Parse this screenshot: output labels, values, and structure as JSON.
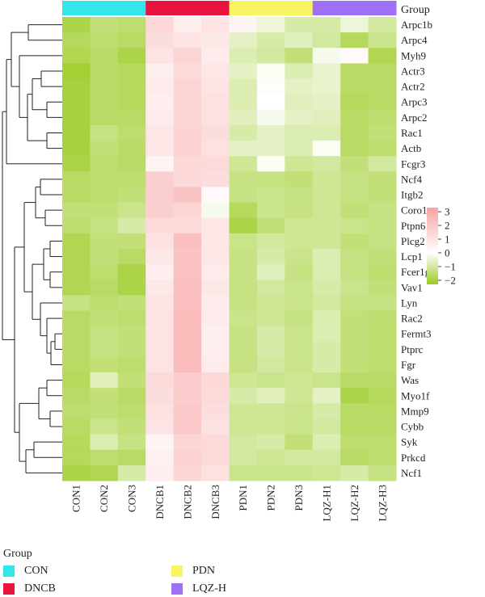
{
  "chart_data": {
    "type": "heatmap",
    "title": "",
    "group_header": "Group",
    "columns": [
      "CON1",
      "CON2",
      "CON3",
      "DNCB1",
      "DNCB2",
      "DNCB3",
      "PDN1",
      "PDN2",
      "PDN3",
      "LQZ-H1",
      "LQZ-H2",
      "LQZ-H3"
    ],
    "column_groups": [
      "CON",
      "CON",
      "CON",
      "DNCB",
      "DNCB",
      "DNCB",
      "PDN",
      "PDN",
      "PDN",
      "LQZ-H",
      "LQZ-H",
      "LQZ-H"
    ],
    "rows": [
      "Arpc1b",
      "Arpc4",
      "Myh9",
      "Actr3",
      "Actr2",
      "Arpc3",
      "Arpc2",
      "Rac1",
      "Actb",
      "Fcgr3",
      "Ncf4",
      "Itgb2",
      "Coro1a",
      "Ptpn6",
      "Plcg2",
      "Lcp1",
      "Fcer1g",
      "Vav1",
      "Lyn",
      "Rac2",
      "Fermt3",
      "Ptprc",
      "Fgr",
      "Was",
      "Myo1f",
      "Mmp9",
      "Cybb",
      "Syk",
      "Prkcd",
      "Ncf1"
    ],
    "values": [
      [
        -1.9,
        -1.4,
        -1.5,
        1.4,
        0.6,
        1.0,
        0.4,
        -0.4,
        -0.9,
        -0.9,
        -0.4,
        -1.0
      ],
      [
        -1.7,
        -1.5,
        -1.6,
        1.2,
        1.0,
        0.8,
        -0.6,
        -0.9,
        -0.7,
        -1.0,
        -1.7,
        -1.2
      ],
      [
        -1.8,
        -1.6,
        -1.9,
        1.0,
        1.5,
        0.7,
        -0.8,
        -1.0,
        -1.4,
        -0.2,
        0.2,
        -1.8
      ],
      [
        -2.1,
        -1.6,
        -1.7,
        0.6,
        1.3,
        0.9,
        -0.6,
        -0.1,
        -0.8,
        -0.5,
        -1.6,
        -1.6
      ],
      [
        -2.0,
        -1.6,
        -1.7,
        0.7,
        1.5,
        1.0,
        -0.8,
        0.1,
        -0.6,
        -0.5,
        -1.6,
        -1.6
      ],
      [
        -2.0,
        -1.6,
        -1.7,
        0.6,
        1.5,
        1.1,
        -0.8,
        0.0,
        -0.7,
        -0.6,
        -1.7,
        -1.6
      ],
      [
        -2.0,
        -1.6,
        -1.6,
        0.7,
        1.5,
        1.1,
        -0.7,
        -0.2,
        -0.6,
        -0.7,
        -1.6,
        -1.5
      ],
      [
        -2.0,
        -1.3,
        -1.5,
        0.9,
        1.6,
        1.2,
        -0.9,
        -0.6,
        -0.8,
        -0.8,
        -1.6,
        -1.4
      ],
      [
        -2.0,
        -1.4,
        -1.6,
        0.9,
        1.6,
        1.1,
        -0.6,
        -0.6,
        -0.8,
        -0.1,
        -1.6,
        -1.5
      ],
      [
        -1.9,
        -1.5,
        -1.6,
        0.4,
        1.4,
        1.3,
        -1.1,
        -0.1,
        -1.1,
        -1.0,
        -1.4,
        -1.0
      ],
      [
        -1.6,
        -1.5,
        -1.5,
        1.7,
        1.4,
        1.2,
        -1.3,
        -1.3,
        -1.4,
        -1.1,
        -1.3,
        -1.4
      ],
      [
        -1.6,
        -1.5,
        -1.4,
        1.7,
        2.1,
        0.2,
        -1.3,
        -1.2,
        -1.3,
        -1.1,
        -1.3,
        -1.4
      ],
      [
        -1.4,
        -1.4,
        -1.2,
        1.7,
        1.5,
        -0.2,
        -1.7,
        -1.2,
        -1.3,
        -1.1,
        -1.4,
        -1.3
      ],
      [
        -1.5,
        -1.3,
        -0.9,
        1.3,
        1.3,
        0.9,
        -1.9,
        -1.4,
        -1.1,
        -1.1,
        -1.2,
        -1.3
      ],
      [
        -1.8,
        -1.4,
        -1.4,
        1.1,
        2.3,
        0.9,
        -1.2,
        -1.0,
        -1.1,
        -1.1,
        -1.4,
        -1.3
      ],
      [
        -1.8,
        -1.4,
        -1.6,
        0.8,
        2.1,
        0.9,
        -1.3,
        -0.9,
        -1.2,
        -0.8,
        -1.3,
        -1.4
      ],
      [
        -1.8,
        -1.5,
        -1.9,
        0.6,
        2.2,
        0.7,
        -1.3,
        -0.7,
        -1.3,
        -0.8,
        -1.3,
        -1.5
      ],
      [
        -1.8,
        -1.6,
        -1.9,
        0.8,
        2.3,
        0.8,
        -1.3,
        -1.0,
        -1.2,
        -0.9,
        -1.2,
        -1.4
      ],
      [
        -1.3,
        -1.5,
        -1.4,
        1.0,
        2.3,
        0.7,
        -1.3,
        -1.1,
        -1.2,
        -1.0,
        -1.3,
        -1.3
      ],
      [
        -1.6,
        -1.4,
        -1.5,
        1.0,
        2.4,
        0.7,
        -1.2,
        -1.1,
        -1.3,
        -0.8,
        -1.4,
        -1.5
      ],
      [
        -1.6,
        -1.3,
        -1.4,
        1.0,
        2.4,
        0.6,
        -1.3,
        -0.9,
        -1.2,
        -0.8,
        -1.4,
        -1.5
      ],
      [
        -1.6,
        -1.3,
        -1.4,
        1.0,
        2.4,
        0.6,
        -1.3,
        -0.9,
        -1.2,
        -0.9,
        -1.4,
        -1.5
      ],
      [
        -1.6,
        -1.4,
        -1.5,
        1.0,
        2.4,
        0.7,
        -1.3,
        -1.0,
        -1.2,
        -0.9,
        -1.4,
        -1.5
      ],
      [
        -1.7,
        -0.7,
        -1.4,
        1.3,
        1.8,
        1.4,
        -1.1,
        -1.2,
        -1.1,
        -1.2,
        -1.6,
        -1.6
      ],
      [
        -1.6,
        -1.4,
        -1.6,
        1.2,
        1.8,
        1.3,
        -0.9,
        -0.7,
        -1.1,
        -0.6,
        -1.9,
        -1.7
      ],
      [
        -1.5,
        -1.4,
        -1.5,
        1.1,
        1.9,
        1.2,
        -1.1,
        -1.1,
        -1.2,
        -0.9,
        -1.6,
        -1.6
      ],
      [
        -1.6,
        -1.2,
        -1.4,
        1.0,
        1.9,
        1.1,
        -1.1,
        -1.1,
        -1.2,
        -1.0,
        -1.6,
        -1.6
      ],
      [
        -1.7,
        -0.8,
        -1.3,
        0.4,
        1.5,
        1.3,
        -1.0,
        -0.9,
        -1.4,
        -0.8,
        -1.5,
        -1.5
      ],
      [
        -1.7,
        -1.5,
        -1.6,
        0.5,
        1.6,
        1.3,
        -1.0,
        -1.1,
        -1.0,
        -1.0,
        -1.6,
        -1.5
      ],
      [
        -1.9,
        -1.8,
        -0.9,
        0.6,
        1.5,
        1.1,
        -1.2,
        -1.2,
        -1.2,
        -1.1,
        -0.9,
        -1.3
      ]
    ],
    "color_scale": {
      "ticks": [
        3,
        2,
        1,
        0,
        -1,
        -2
      ],
      "tick_labels": [
        "3",
        "2",
        "1",
        "0",
        "−1",
        "−2"
      ],
      "min": -2.3,
      "max": 3.3,
      "stops": [
        {
          "value": -2.3,
          "color": "#9acb22"
        },
        {
          "value": 0,
          "color": "#ffffff"
        },
        {
          "value": 3.3,
          "color": "#f8a2a2"
        }
      ]
    }
  },
  "group_colors": {
    "CON": "#33e6ea",
    "DNCB": "#e8143f",
    "PDN": "#f8f562",
    "LQZ-H": "#9e70f5"
  },
  "legend": {
    "title": "Group",
    "items": [
      {
        "label": "CON",
        "color": "#33e6ea"
      },
      {
        "label": "DNCB",
        "color": "#e8143f"
      },
      {
        "label": "PDN",
        "color": "#f8f562"
      },
      {
        "label": "LQZ-H",
        "color": "#9e70f5"
      }
    ]
  }
}
